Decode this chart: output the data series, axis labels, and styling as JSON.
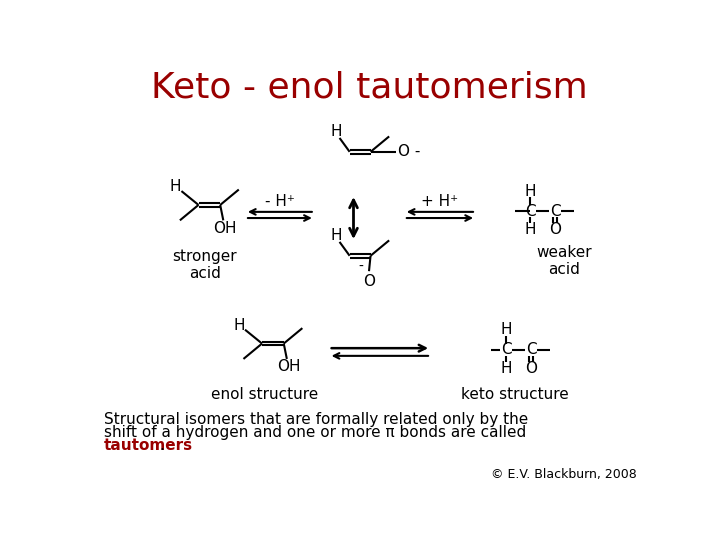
{
  "title": "Keto - enol tautomerism",
  "title_color": "#990000",
  "title_fontsize": 26,
  "bg_color": "#ffffff",
  "tautomers_color": "#990000",
  "caption_line1": "Structural isomers that are formally related only by the",
  "caption_line2": "shift of a hydrogen and one or more π bonds are called",
  "caption_word_tautomers": "tautomers",
  "caption_period": ".",
  "copyright": "© E.V. Blackburn, 2008",
  "label_stronger_acid": "stronger\nacid",
  "label_weaker_acid": "weaker\nacid",
  "label_enol_structure": "enol structure",
  "label_keto_structure": "keto structure",
  "label_minus_H": "- H⁺",
  "label_plus_H": "+ H⁺",
  "font_size_labels": 11,
  "font_size_atom": 11
}
